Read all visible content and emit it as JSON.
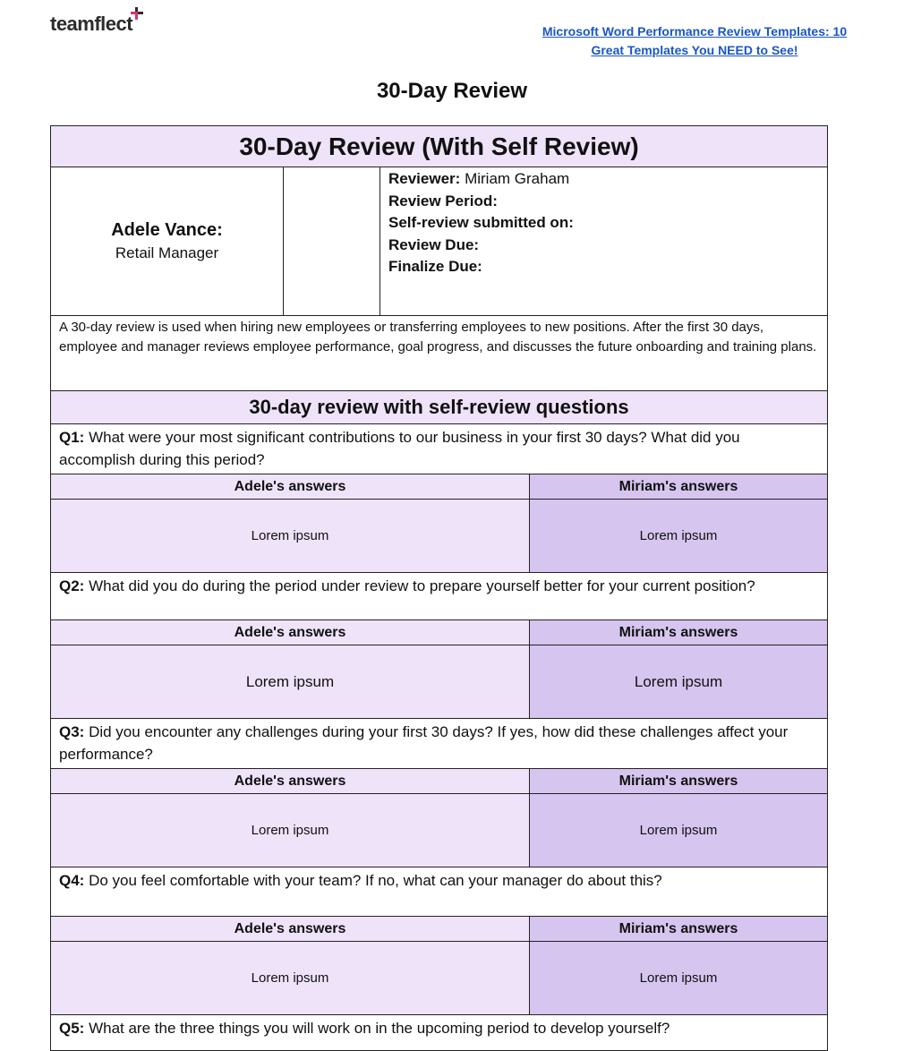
{
  "logo": {
    "text": "teamflect",
    "accent": "#e0306a"
  },
  "link": {
    "text": "Microsoft Word Performance Review Templates: 10 Great Templates You NEED to See!"
  },
  "doc_title": "30-Day Review",
  "form": {
    "title": "30-Day Review (With Self Review)",
    "employee_name": "Adele Vance:",
    "employee_role": "Retail Manager",
    "reviewer_label": "Reviewer:",
    "reviewer_value": "Miriam Graham",
    "review_period_label": "Review Period:",
    "self_review_label": "Self-review submitted on:",
    "review_due_label": "Review Due:",
    "finalize_due_label": "Finalize Due:",
    "description": "A 30-day review is used when hiring new employees or transferring employees to new positions. After the first 30 days, employee and manager reviews employee performance, goal progress, and discusses the future onboarding and training plans.",
    "section_title": "30-day review with self-review questions",
    "answer_col_1": "Adele's answers",
    "answer_col_2": "Miriam's answers",
    "questions": [
      {
        "label": "Q1:",
        "text": "What were your most significant contributions to our business in your first 30 days? What did you accomplish during this period?",
        "answer_1": "Lorem ipsum",
        "answer_2": "Lorem ipsum"
      },
      {
        "label": "Q2:",
        "text": "What did you do during the period under review to prepare yourself better for your current position?",
        "answer_1": "Lorem ipsum",
        "answer_2": "Lorem ipsum"
      },
      {
        "label": "Q3:",
        "text": "Did you encounter any challenges during your first 30 days? If yes, how did these challenges affect your performance?",
        "answer_1": "Lorem ipsum",
        "answer_2": "Lorem ipsum"
      },
      {
        "label": "Q4:",
        "text": "Do you feel comfortable with your team? If no, what can your manager do about this?",
        "answer_1": "Lorem ipsum",
        "answer_2": "Lorem ipsum"
      },
      {
        "label": "Q5:",
        "text": "What are the three things you will work on in the upcoming period to develop yourself?"
      }
    ]
  },
  "colors": {
    "band": "#efe3fa",
    "answer_employee": "#efe3fa",
    "answer_manager": "#d6c5ef",
    "link": "#1a56c4"
  }
}
